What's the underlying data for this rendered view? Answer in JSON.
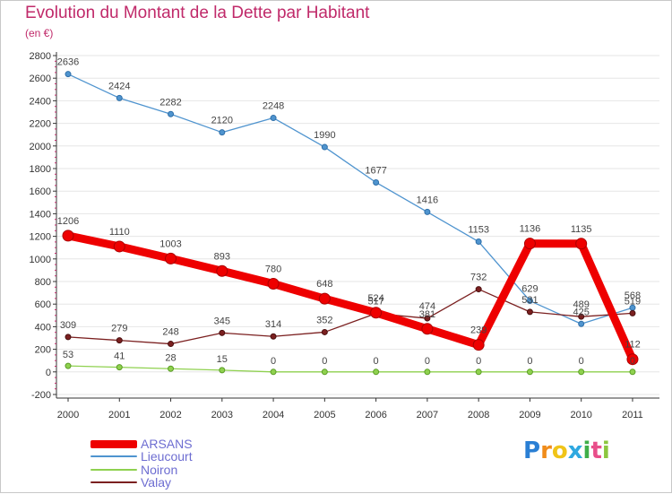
{
  "title": "Evolution du Montant de la Dette par Habitant",
  "subtitle": "(en €)",
  "logo": {
    "text": "Proxiti",
    "letters": [
      "P",
      "r",
      "o",
      "x",
      "i",
      "t",
      "i"
    ],
    "letter_colors": [
      "#2a7fd4",
      "#f08c1a",
      "#f0c419",
      "#2ea8e0",
      "#3fae49",
      "#e84e8a",
      "#8cc63f"
    ]
  },
  "chart_data": {
    "type": "line",
    "title": "Evolution du Montant de la Dette par Habitant",
    "subtitle": "(en €)",
    "xlabel": "",
    "ylabel": "",
    "categories": [
      "2000",
      "2001",
      "2002",
      "2003",
      "2004",
      "2005",
      "2006",
      "2007",
      "2008",
      "2009",
      "2010",
      "2011"
    ],
    "ylim": [
      -200,
      2800
    ],
    "yticks": [
      -200,
      0,
      200,
      400,
      600,
      800,
      1000,
      1200,
      1400,
      1600,
      1800,
      2000,
      2200,
      2400,
      2600,
      2800
    ],
    "ytick_labels": [
      "-200",
      "0",
      "200",
      "400",
      "600",
      "800",
      "1000",
      "1200",
      "1400",
      "1600",
      "1800",
      "2000",
      "2200",
      "2400",
      "2600",
      "2800"
    ],
    "legend_position": "bottom-left",
    "series": [
      {
        "name": "Lieucourt",
        "color": "#4f94cf",
        "values": [
          2636,
          2424,
          2282,
          2120,
          2248,
          1990,
          1677,
          1416,
          1153,
          629,
          425,
          568
        ],
        "labels": [
          "2636",
          "2424",
          "2282",
          "2120",
          "2248",
          "1990",
          "1677",
          "1416",
          "1153",
          "629",
          "425",
          "568"
        ]
      },
      {
        "name": "Noiron",
        "color": "#8fd14f",
        "values": [
          53,
          41,
          28,
          15,
          0,
          0,
          0,
          0,
          0,
          0,
          0,
          0
        ],
        "labels": [
          "53",
          "41",
          "28",
          "15",
          "0",
          "0",
          "0",
          "0",
          "0",
          "0",
          "0",
          "0"
        ]
      },
      {
        "name": "Valay",
        "color": "#7b2020",
        "values": [
          309,
          279,
          248,
          345,
          314,
          352,
          517,
          474,
          732,
          531,
          489,
          519
        ],
        "labels": [
          "309",
          "279",
          "248",
          "345",
          "314",
          "352",
          "517",
          "474",
          "732",
          "531",
          "489",
          "519"
        ]
      },
      {
        "name": "ARSANS",
        "color": "#ee0000",
        "values": [
          1206,
          1110,
          1003,
          893,
          780,
          648,
          524,
          381,
          239,
          1136,
          1135,
          112
        ],
        "labels": [
          "1206",
          "1110",
          "1003",
          "893",
          "780",
          "648",
          "524",
          "381",
          "239",
          "1136",
          "1135",
          "112"
        ]
      }
    ],
    "legend": [
      {
        "name": "ARSANS",
        "color": "#ee0000"
      },
      {
        "name": "Lieucourt",
        "color": "#4f94cf"
      },
      {
        "name": "Noiron",
        "color": "#8fd14f"
      },
      {
        "name": "Valay",
        "color": "#7b2020"
      }
    ]
  }
}
